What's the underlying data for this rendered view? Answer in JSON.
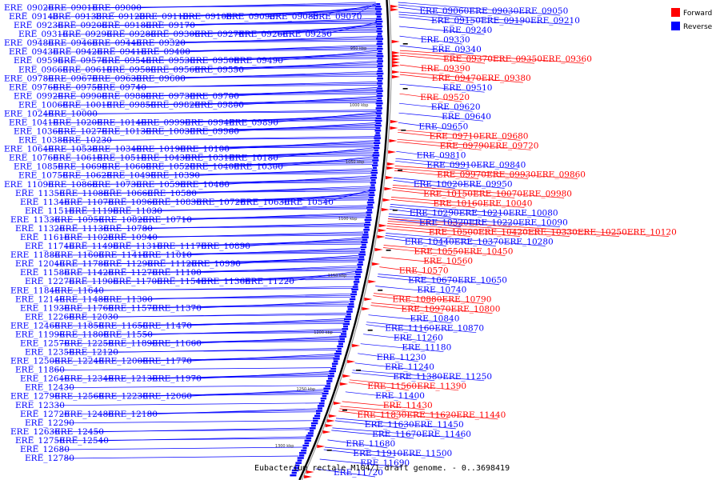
{
  "caption": "Eubacterium rectale M104/1 draft genome. - 0..3698419",
  "legend": [
    {
      "label": "Forward",
      "color": "#ff0000"
    },
    {
      "label": "Reverse",
      "color": "#0000ff"
    }
  ],
  "colors": {
    "forward": "#ff0000",
    "reverse": "#0000ff",
    "backbone": "#000000"
  },
  "tick_labels": [
    "950 kbp",
    "1000 kbp",
    "1050 kbp",
    "1100 kbp",
    "1150 kbp",
    "1200 kbp",
    "1250 kbp",
    "1300 kbp"
  ],
  "reverse_left_rows": [
    [
      "ERE_09020",
      "ERE_09010",
      "ERE_09000"
    ],
    [
      "ERE_09140",
      "ERE_09130",
      "ERE_09120",
      "ERE_09110",
      "ERE_09100",
      "ERE_09090",
      "ERE_09080",
      "ERE_09070"
    ],
    [
      "ERE_09230",
      "ERE_09200",
      "ERE_09180",
      "ERE_09170"
    ],
    [
      "ERE_09310",
      "ERE_09290",
      "ERE_09280",
      "ERE_09300",
      "ERE_09270",
      "ERE_09260",
      "ERE_09250"
    ],
    [
      "ERE_09480",
      "ERE_09460",
      "ERE_09440",
      "ERE_09320"
    ],
    [
      "ERE_09430",
      "ERE_09420",
      "ERE_09410",
      "ERE_09400"
    ],
    [
      "ERE_09590",
      "ERE_09570",
      "ERE_09540",
      "ERE_09530",
      "ERE_09500",
      "ERE_09490"
    ],
    [
      "ERE_09660",
      "ERE_09610",
      "ERE_09580",
      "ERE_09560",
      "ERE_09550"
    ],
    [
      "ERE_09780",
      "ERE_09670",
      "ERE_09630",
      "ERE_09600"
    ],
    [
      "ERE_09760",
      "ERE_09750",
      "ERE_09740"
    ],
    [
      "ERE_09920",
      "ERE_09900",
      "ERE_09880",
      "ERE_09730",
      "ERE_09700"
    ],
    [
      "ERE_10060",
      "ERE_10010",
      "ERE_09850",
      "ERE_09820",
      "ERE_09800"
    ],
    [
      "ERE_10240",
      "ERE_10000"
    ],
    [
      "ERE_10410",
      "ERE_10200",
      "ERE_10140",
      "ERE_09990",
      "ERE_09940",
      "ERE_09890"
    ],
    [
      "ERE_10360",
      "ERE_10270",
      "ERE_10130",
      "ERE_10030",
      "ERE_09960"
    ],
    [
      "ERE_10380",
      "ERE_10230"
    ],
    [
      "ERE_10640",
      "ERE_10530",
      "ERE_10340",
      "ERE_10190",
      "ERE_10100"
    ],
    [
      "ERE_10760",
      "ERE_10610",
      "ERE_10510",
      "ERE_10430",
      "ERE_10310",
      "ERE_10180"
    ],
    [
      "ERE_10850",
      "ERE_10690",
      "ERE_10600",
      "ERE_10520",
      "ERE_10400",
      "ERE_10300"
    ],
    [
      "ERE_10750",
      "ERE_10620",
      "ERE_10490",
      "ERE_10390"
    ],
    [
      "ERE_11090",
      "ERE_10860",
      "ERE_10730",
      "ERE_10590",
      "ERE_10460"
    ],
    [
      "ERE_11350",
      "ERE_11080",
      "ERE_10660",
      "ERE_10580"
    ],
    [
      "ERE_11340",
      "ERE_11070",
      "ERE_10960",
      "ERE_10830",
      "ERE_10720",
      "ERE_10630",
      "ERE_10540"
    ],
    [
      "ERE_11510",
      "ERE_11190",
      "ERE_11030"
    ],
    [
      "ERE_11330",
      "ERE_10950",
      "ERE_10820",
      "ERE_10710"
    ],
    [
      "ERE_11320",
      "ERE_11130",
      "ERE_10780"
    ],
    [
      "ERE_11610",
      "ERE_11020",
      "ERE_10940"
    ],
    [
      "ERE_11740",
      "ERE_11490",
      "ERE_11310",
      "ERE_11170",
      "ERE_10890"
    ],
    [
      "ERE_11880",
      "ERE_11600",
      "ERE_11410",
      "ERE_11010"
    ],
    [
      "ERE_12040",
      "ERE_11780",
      "ERE_11290",
      "ERE_11120",
      "ERE_10990"
    ],
    [
      "ERE_11580",
      "ERE_11420",
      "ERE_11270",
      "ERE_11100"
    ],
    [
      "ERE_12270",
      "ERE_11900",
      "ERE_11700",
      "ERE_11540",
      "ERE_11360",
      "ERE_11220"
    ],
    [
      "ERE_11840",
      "ERE_11640"
    ],
    [
      "ERE_12140",
      "ERE_11480",
      "ERE_11300"
    ],
    [
      "ERE_11930",
      "ERE_11760",
      "ERE_11570",
      "ERE_11370"
    ],
    [
      "ERE_12260",
      "ERE_12030"
    ],
    [
      "ERE_12460",
      "ERE_11850",
      "ERE_11650",
      "ERE_11470"
    ],
    [
      "ERE_11990",
      "ERE_11800",
      "ERE_11550"
    ],
    [
      "ERE_12570",
      "ERE_12250",
      "ERE_11890",
      "ERE_11660"
    ],
    [
      "ERE_12350",
      "ERE_12120"
    ],
    [
      "ERE_12500",
      "ERE_12240",
      "ERE_12000",
      "ERE_11770"
    ],
    [
      "ERE_11860"
    ],
    [
      "ERE_12640",
      "ERE_12340",
      "ERE_12130",
      "ERE_11970"
    ],
    [
      "ERE_12430"
    ],
    [
      "ERE_12790",
      "ERE_12560",
      "ERE_12230",
      "ERE_12060"
    ],
    [
      "ERE_12330"
    ],
    [
      "ERE_12720",
      "ERE_12480",
      "ERE_12180"
    ],
    [
      "ERE_12290"
    ],
    [
      "ERE_12630",
      "ERE_12450"
    ],
    [
      "ERE_12750",
      "ERE_12540"
    ],
    [
      "ERE_12680"
    ],
    [
      "ERE_12780"
    ]
  ],
  "right_rows": [
    {
      "labels": [
        "ERE_09060",
        "ERE_09030",
        "ERE_09050"
      ],
      "strand": "reverse"
    },
    {
      "labels": [
        "ERE_09150",
        "ERE_09190",
        "ERE_09210"
      ],
      "strand": "reverse"
    },
    {
      "labels": [
        "ERE_09240"
      ],
      "strand": "reverse"
    },
    {
      "labels": [
        "ERE_09330"
      ],
      "strand": "reverse"
    },
    {
      "labels": [
        "ERE_09340"
      ],
      "strand": "reverse"
    },
    {
      "labels": [
        "ERE_09370",
        "ERE_09350",
        "ERE_09360"
      ],
      "strand": "forward"
    },
    {
      "labels": [
        "ERE_09390"
      ],
      "strand": "forward"
    },
    {
      "labels": [
        "ERE_09470",
        "ERE_09380"
      ],
      "strand": "forward"
    },
    {
      "labels": [
        "ERE_09510"
      ],
      "strand": "reverse"
    },
    {
      "labels": [
        "ERE_09520"
      ],
      "strand": "forward"
    },
    {
      "labels": [
        "ERE_09620"
      ],
      "strand": "reverse"
    },
    {
      "labels": [
        "ERE_09640"
      ],
      "strand": "reverse"
    },
    {
      "labels": [
        "ERE_09650"
      ],
      "strand": "reverse"
    },
    {
      "labels": [
        "ERE_09710",
        "ERE_09680"
      ],
      "strand": "forward"
    },
    {
      "labels": [
        "ERE_09790",
        "ERE_09720"
      ],
      "strand": "forward"
    },
    {
      "labels": [
        "ERE_09810"
      ],
      "strand": "reverse"
    },
    {
      "labels": [
        "ERE_09910",
        "ERE_09840"
      ],
      "strand": "reverse"
    },
    {
      "labels": [
        "ERE_09970",
        "ERE_09930",
        "ERE_09860"
      ],
      "strand": "forward"
    },
    {
      "labels": [
        "ERE_10020",
        "ERE_09950"
      ],
      "strand": "reverse"
    },
    {
      "labels": [
        "ERE_10150",
        "ERE_10070",
        "ERE_09980"
      ],
      "strand": "forward"
    },
    {
      "labels": [
        "ERE_10160",
        "ERE_10040"
      ],
      "strand": "forward"
    },
    {
      "labels": [
        "ERE_10290",
        "ERE_10210",
        "ERE_10080"
      ],
      "strand": "reverse"
    },
    {
      "labels": [
        "ERE_10320",
        "ERE_10220",
        "ERE_10090"
      ],
      "strand": "reverse"
    },
    {
      "labels": [
        "ERE_10500",
        "ERE_10420",
        "ERE_10330",
        "ERE_10250",
        "ERE_10120"
      ],
      "strand": "forward"
    },
    {
      "labels": [
        "ERE_10440",
        "ERE_10370",
        "ERE_10280"
      ],
      "strand": "reverse"
    },
    {
      "labels": [
        "ERE_10550",
        "ERE_10450"
      ],
      "strand": "forward"
    },
    {
      "labels": [
        "ERE_10560"
      ],
      "strand": "forward"
    },
    {
      "labels": [
        "ERE_10570"
      ],
      "strand": "forward"
    },
    {
      "labels": [
        "ERE_10670",
        "ERE_10650"
      ],
      "strand": "reverse"
    },
    {
      "labels": [
        "ERE_10740"
      ],
      "strand": "reverse"
    },
    {
      "labels": [
        "ERE_10880",
        "ERE_10790"
      ],
      "strand": "forward"
    },
    {
      "labels": [
        "ERE_10970",
        "ERE_10800"
      ],
      "strand": "forward"
    },
    {
      "labels": [
        "ERE_10840"
      ],
      "strand": "reverse"
    },
    {
      "labels": [
        "ERE_11160",
        "ERE_10870"
      ],
      "strand": "reverse"
    },
    {
      "labels": [
        "ERE_11260"
      ],
      "strand": "reverse"
    },
    {
      "labels": [
        "ERE_11180"
      ],
      "strand": "reverse"
    },
    {
      "labels": [
        "ERE_11230"
      ],
      "strand": "reverse"
    },
    {
      "labels": [
        "ERE_11240"
      ],
      "strand": "reverse"
    },
    {
      "labels": [
        "ERE_11380",
        "ERE_11250"
      ],
      "strand": "reverse"
    },
    {
      "labels": [
        "ERE_11560",
        "ERE_11390"
      ],
      "strand": "forward"
    },
    {
      "labels": [
        "ERE_11400"
      ],
      "strand": "reverse"
    },
    {
      "labels": [
        "ERE_11430"
      ],
      "strand": "forward"
    },
    {
      "labels": [
        "ERE_11830",
        "ERE_11620",
        "ERE_11440"
      ],
      "strand": "forward"
    },
    {
      "labels": [
        "ERE_11630",
        "ERE_11450"
      ],
      "strand": "reverse"
    },
    {
      "labels": [
        "ERE_11670",
        "ERE_11460"
      ],
      "strand": "reverse"
    },
    {
      "labels": [
        "ERE_11680"
      ],
      "strand": "reverse"
    },
    {
      "labels": [
        "ERE_11910",
        "ERE_11500"
      ],
      "strand": "reverse"
    },
    {
      "labels": [
        "ERE_11690"
      ],
      "strand": "reverse"
    },
    {
      "labels": [
        "ERE_11720"
      ],
      "strand": "reverse"
    }
  ]
}
